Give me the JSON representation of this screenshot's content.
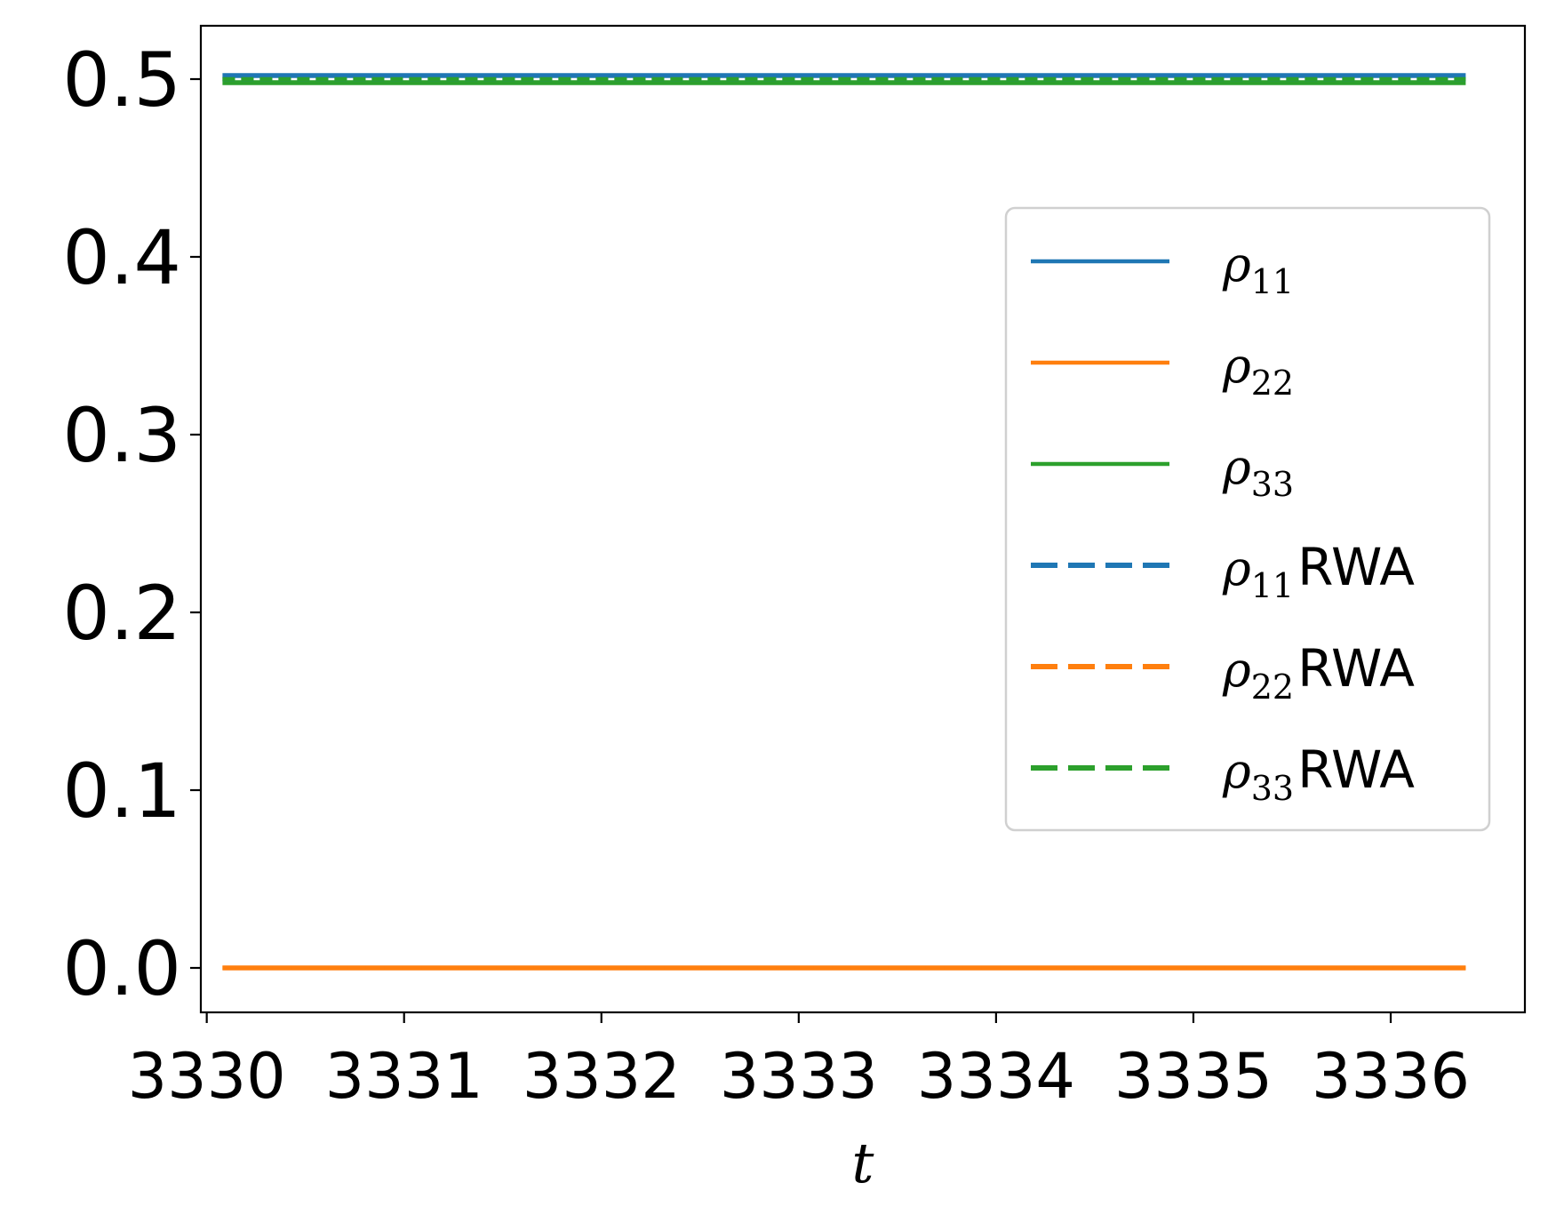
{
  "chart_data": {
    "type": "line",
    "xlabel": "t",
    "ylabel": "",
    "title": "",
    "xlim": [
      3329.97,
      3336.68
    ],
    "ylim": [
      -0.025,
      0.53
    ],
    "xticks": [
      3330,
      3331,
      3332,
      3333,
      3334,
      3335,
      3336
    ],
    "yticks": [
      0.0,
      0.1,
      0.2,
      0.3,
      0.4,
      0.5
    ],
    "ytick_labels": [
      "0.0",
      "0.1",
      "0.2",
      "0.3",
      "0.4",
      "0.5"
    ],
    "grid": false,
    "legend_position": "center-right",
    "series": [
      {
        "name": "ρ11",
        "symbol": "ρ",
        "sub": "11",
        "suffix": "",
        "color": "#1f77b4",
        "style": "solid",
        "x": [
          3330.08,
          3336.38
        ],
        "y": [
          0.502,
          0.502
        ]
      },
      {
        "name": "ρ22",
        "symbol": "ρ",
        "sub": "22",
        "suffix": "",
        "color": "#ff7f0e",
        "style": "solid",
        "x": [
          3330.08,
          3336.38
        ],
        "y": [
          0.0,
          0.0
        ]
      },
      {
        "name": "ρ33",
        "symbol": "ρ",
        "sub": "33",
        "suffix": "",
        "color": "#2ca02c",
        "style": "solid",
        "x": [
          3330.08,
          3336.38
        ],
        "y": [
          0.498,
          0.498
        ]
      },
      {
        "name": "ρ11RWA",
        "symbol": "ρ",
        "sub": "11",
        "suffix": "RWA",
        "color": "#1f77b4",
        "style": "dashed",
        "x": [
          3330.08,
          3336.38
        ],
        "y": [
          0.5,
          0.5
        ]
      },
      {
        "name": "ρ22RWA",
        "symbol": "ρ",
        "sub": "22",
        "suffix": "RWA",
        "color": "#ff7f0e",
        "style": "dashed",
        "x": [
          3330.08,
          3336.38
        ],
        "y": [
          0.0,
          0.0
        ]
      },
      {
        "name": "ρ33RWA",
        "symbol": "ρ",
        "sub": "33",
        "suffix": "RWA",
        "color": "#2ca02c",
        "style": "dashed",
        "x": [
          3330.08,
          3336.38
        ],
        "y": [
          0.5,
          0.5
        ]
      }
    ]
  }
}
